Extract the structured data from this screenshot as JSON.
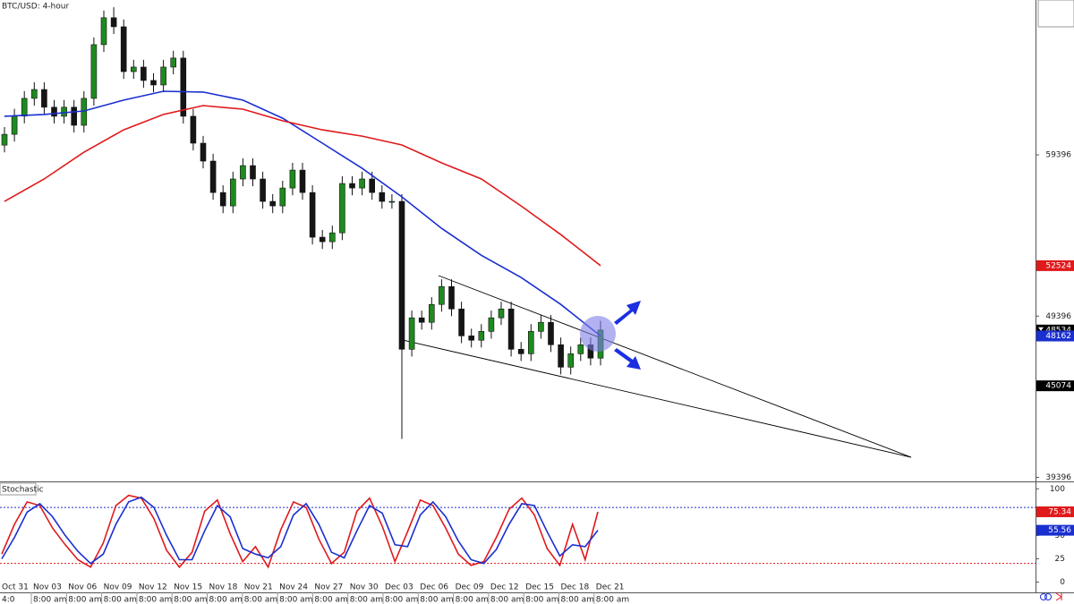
{
  "chart_data": [
    {
      "type": "candlestick",
      "title": "BTC/USD: 4-hour",
      "open": [
        60000,
        60670,
        61800,
        62900,
        63450,
        62350,
        61790,
        62350,
        61230,
        62900,
        66230,
        67900,
        67340,
        64560,
        64840,
        64010,
        63730,
        64840,
        65400,
        61790,
        60120,
        59010,
        57060,
        56230,
        57900,
        58730,
        57900,
        56510,
        56230,
        57340,
        58450,
        57060,
        54290,
        54010,
        54560,
        57620,
        57340,
        57900,
        57060,
        56510,
        56510,
        47340,
        49290,
        49010,
        50120,
        51230,
        49840,
        48170,
        47900,
        48450,
        49290,
        49840,
        47340,
        47060,
        48450,
        49010,
        47620,
        46230,
        47060,
        47620,
        46790
      ],
      "high": [
        61120,
        62250,
        63350,
        63900,
        63900,
        62800,
        62800,
        62800,
        63350,
        66680,
        68350,
        68550,
        67790,
        65290,
        65290,
        64460,
        65290,
        65850,
        65850,
        62240,
        60570,
        59460,
        57510,
        58350,
        59180,
        59180,
        58350,
        56960,
        57790,
        58900,
        58900,
        57510,
        54740,
        55010,
        58070,
        58070,
        58350,
        58350,
        57510,
        56960,
        56960,
        49740,
        49740,
        50570,
        51680,
        51680,
        50290,
        48620,
        48900,
        49740,
        50290,
        50290,
        47790,
        48900,
        49460,
        49460,
        48070,
        47510,
        48070,
        48070,
        49100
      ],
      "low": [
        59550,
        60220,
        61350,
        62450,
        61900,
        61340,
        61340,
        60780,
        60780,
        62450,
        65780,
        66890,
        64110,
        64110,
        63560,
        63280,
        63280,
        64390,
        61340,
        59670,
        58560,
        56610,
        55780,
        55780,
        57450,
        57450,
        56060,
        55780,
        55780,
        56890,
        56610,
        53840,
        53560,
        53560,
        54110,
        56890,
        56890,
        56610,
        56060,
        56060,
        41780,
        46890,
        48560,
        48560,
        49670,
        49390,
        47720,
        47450,
        47450,
        48000,
        48840,
        46890,
        46610,
        46610,
        48000,
        47170,
        45780,
        45780,
        46610,
        46340,
        46340
      ],
      "close": [
        60670,
        61800,
        62900,
        63450,
        62350,
        61790,
        62350,
        61230,
        62900,
        66230,
        67900,
        67340,
        64560,
        64840,
        64010,
        63730,
        64840,
        65400,
        61790,
        60120,
        59010,
        57060,
        56230,
        57900,
        58730,
        57900,
        56510,
        56230,
        57340,
        58450,
        57060,
        54290,
        54010,
        54560,
        57620,
        57340,
        57900,
        57060,
        56510,
        56510,
        47340,
        49290,
        49010,
        50120,
        51230,
        49840,
        48170,
        47900,
        48450,
        49290,
        49840,
        47340,
        47060,
        48450,
        49010,
        47620,
        46230,
        47060,
        47620,
        46790,
        48534
      ],
      "up_color": "#1f8a1f",
      "down_color": "#151515",
      "series": [
        {
          "color": "#1a2fd0",
          "values": [
            61790,
            61900,
            62120,
            62790,
            63340,
            63290,
            62790,
            61670,
            60120,
            58560,
            56790,
            54840,
            53170,
            51790,
            50120,
            48162
          ]
        },
        {
          "color": "#e0191b",
          "values": [
            56510,
            57900,
            59560,
            60950,
            61900,
            62450,
            62230,
            61510,
            60950,
            60560,
            60010,
            58900,
            57900,
            56230,
            54450,
            52524
          ]
        }
      ],
      "ylim": [
        39200,
        69000
      ],
      "yticks": [
        39396,
        49396,
        59396
      ],
      "price_markers": [
        {
          "value": 52524,
          "color": "#e0191b"
        },
        {
          "value": 48534,
          "color": "#000000"
        },
        {
          "value": 48162,
          "color": "#1a2fd0"
        },
        {
          "value": 45074,
          "color": "#000000"
        }
      ],
      "x_labels": [
        {
          "date": "Oct 31",
          "time": "4:0"
        },
        {
          "date": "Nov 03",
          "time": "8:00 am"
        },
        {
          "date": "Nov 06",
          "time": "8:00 am"
        },
        {
          "date": "Nov 09",
          "time": "8:00 am"
        },
        {
          "date": "Nov 12",
          "time": "8:00 am"
        },
        {
          "date": "Nov 15",
          "time": "8:00 am"
        },
        {
          "date": "Nov 18",
          "time": "8:00 am"
        },
        {
          "date": "Nov 21",
          "time": "8:00 am"
        },
        {
          "date": "Nov 24",
          "time": "8:00 am"
        },
        {
          "date": "Nov 27",
          "time": "8:00 am"
        },
        {
          "date": "Nov 30",
          "time": "8:00 am"
        },
        {
          "date": "Dec 03",
          "time": "8:00 am"
        },
        {
          "date": "Dec 06",
          "time": "8:00 am"
        },
        {
          "date": "Dec 09",
          "time": "8:00 am"
        },
        {
          "date": "Dec 12",
          "time": "8:00 am"
        },
        {
          "date": "Dec 15",
          "time": "8:00 am"
        },
        {
          "date": "Dec 18",
          "time": "8:00 am"
        },
        {
          "date": "Dec 21",
          "time": "8:00 am"
        }
      ]
    },
    {
      "type": "line",
      "title": "Stochastic",
      "series": [
        {
          "color": "#e0191b",
          "values": [
            30,
            62,
            86,
            82,
            58,
            40,
            24,
            16,
            42,
            82,
            93,
            90,
            68,
            34,
            16,
            32,
            76,
            88,
            52,
            22,
            38,
            16,
            56,
            86,
            80,
            46,
            20,
            32,
            76,
            90,
            60,
            22,
            54,
            88,
            82,
            58,
            30,
            18,
            22,
            48,
            78,
            90,
            72,
            36,
            18,
            62,
            24,
            75.34
          ]
        },
        {
          "color": "#1a2fd0",
          "values": [
            25,
            48,
            75,
            84,
            70,
            50,
            33,
            20,
            30,
            62,
            86,
            91,
            80,
            50,
            24,
            24,
            55,
            82,
            70,
            36,
            30,
            26,
            38,
            72,
            84,
            62,
            32,
            26,
            55,
            82,
            74,
            40,
            38,
            72,
            86,
            70,
            44,
            24,
            20,
            35,
            62,
            84,
            82,
            54,
            28,
            40,
            38,
            55.56
          ]
        }
      ],
      "ylim": [
        -11,
        106
      ],
      "yticks": [
        0,
        25,
        50,
        75,
        100
      ],
      "levels": [
        {
          "value": 80,
          "color": "#1a2fd0"
        },
        {
          "value": 20,
          "color": "#e0191b"
        }
      ],
      "markers": [
        {
          "value": 75.34,
          "color": "#e0191b"
        },
        {
          "value": 55.56,
          "color": "#1a2fd0"
        }
      ]
    }
  ]
}
